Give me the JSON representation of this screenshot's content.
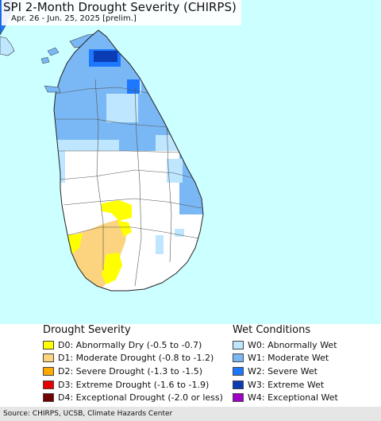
{
  "header": {
    "title": "SPI 2-Month Drought Severity (CHIRPS)",
    "subtitle": "Apr. 26 - Jun. 25, 2025 [prelim.]"
  },
  "map": {
    "region": "Sri Lanka",
    "colors": {
      "ocean": "#ccffff",
      "land": "#ffffff",
      "border": "#333333"
    }
  },
  "legend": {
    "drought": {
      "heading": "Drought Severity",
      "items": [
        {
          "label": "D0: Abnormally Dry (-0.5 to -0.7)",
          "color": "#ffff00"
        },
        {
          "label": "D1: Moderate Drought (-0.8 to -1.2)",
          "color": "#fcd37f"
        },
        {
          "label": "D2: Severe Drought (-1.3 to -1.5)",
          "color": "#ffaa00"
        },
        {
          "label": "D3: Extreme Drought (-1.6 to -1.9)",
          "color": "#e60000"
        },
        {
          "label": "D4: Exceptional Drought (-2.0 or less)",
          "color": "#730000"
        }
      ]
    },
    "wet": {
      "heading": "Wet Conditions",
      "items": [
        {
          "label": "W0: Abnormally Wet",
          "color": "#bfe6ff"
        },
        {
          "label": "W1: Moderate Wet",
          "color": "#7ab8f5"
        },
        {
          "label": "W2: Severe Wet",
          "color": "#1e78ff"
        },
        {
          "label": "W3: Extreme Wet",
          "color": "#0a3cb4"
        },
        {
          "label": "W4: Exceptional Wet",
          "color": "#a000c8"
        }
      ]
    }
  },
  "footer": {
    "source": "Source: CHIRPS, UCSB, Climate Hazards Center"
  }
}
